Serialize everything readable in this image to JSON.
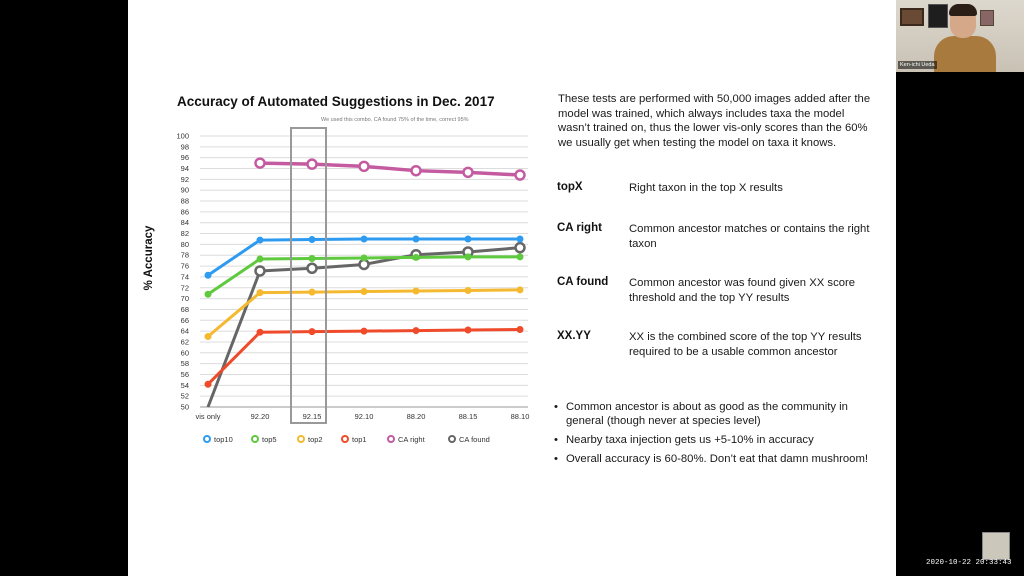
{
  "slide": {
    "chart_title": "Accuracy of Automated Suggestions in Dec. 2017",
    "chart_annotation": "We used this combo. CA found 75% of the time, correct 95%",
    "description": "These tests are performed with 50,000 images added after the model was trained, which always includes taxa the model wasn’t trained on, thus the lower vis-only scores than the 60% we usually get when testing the model on taxa it knows.",
    "definitions": [
      {
        "term": "topX",
        "text": "Right taxon in the top X results"
      },
      {
        "term": "CA right",
        "text": "Common ancestor matches or contains the right taxon"
      },
      {
        "term": "CA found",
        "text": "Common ancestor was found given XX score threshold and the top YY results"
      },
      {
        "term": "XX.YY",
        "text": "XX is the combined score of the top YY results required to be a usable common ancestor"
      }
    ],
    "bullets": [
      "Common ancestor is about as good as the community in general (though never at species level)",
      "Nearby taxa injection gets us +5-10% in accuracy",
      "Overall accuracy is 60-80%. Don’t eat that damn mushroom!"
    ]
  },
  "chart_data": {
    "type": "line",
    "title": "Accuracy of Automated Suggestions in Dec. 2017",
    "xlabel": "",
    "ylabel": "% Accuracy",
    "categories": [
      "vis only",
      "92.20",
      "92.15",
      "92.10",
      "88.20",
      "88.15",
      "88.10"
    ],
    "yticks": [
      50,
      52,
      54,
      56,
      58,
      60,
      62,
      64,
      66,
      68,
      70,
      72,
      74,
      76,
      78,
      80,
      82,
      84,
      86,
      88,
      90,
      92,
      94,
      96,
      98,
      100
    ],
    "ylim": [
      50,
      100
    ],
    "grid": true,
    "legend_position": "bottom",
    "highlighted_category": "92.15",
    "series": [
      {
        "name": "top10",
        "color": "#2e9bf0",
        "values": [
          74.3,
          80.8,
          80.9,
          81.0,
          81.0,
          81.0,
          81.0
        ]
      },
      {
        "name": "top5",
        "color": "#5fc93f",
        "values": [
          70.8,
          77.3,
          77.4,
          77.5,
          77.6,
          77.7,
          77.7
        ]
      },
      {
        "name": "top2",
        "color": "#f5b930",
        "values": [
          63.0,
          71.1,
          71.2,
          71.3,
          71.4,
          71.5,
          71.6
        ]
      },
      {
        "name": "top1",
        "color": "#ef4a2a",
        "values": [
          54.2,
          63.8,
          63.9,
          64.0,
          64.1,
          64.2,
          64.3
        ]
      },
      {
        "name": "CA right",
        "color": "#c45ba0",
        "values": [
          null,
          95.0,
          94.8,
          94.4,
          93.6,
          93.3,
          92.8
        ]
      },
      {
        "name": "CA found",
        "color": "#666666",
        "values": [
          50.0,
          75.1,
          75.6,
          76.3,
          78.1,
          78.6,
          79.4
        ]
      }
    ]
  },
  "webcam": {
    "name": "Ken-ichi Ueda"
  },
  "timestamp": "2020-10-22 20:33:43"
}
